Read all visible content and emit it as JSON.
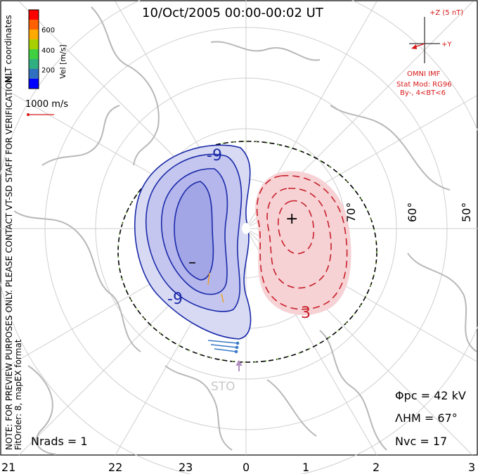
{
  "title": "10/Oct/2005 00:00-00:02 UT",
  "coordinates_label": "MLT coordinates",
  "velocity_scale": {
    "unit_label": "Vel [m/s]",
    "ticks": [
      "600",
      "400",
      "200"
    ],
    "colors": [
      "#ff0000",
      "#ff6000",
      "#ffaa00",
      "#a8d000",
      "#40d040",
      "#30b080",
      "#3070c0",
      "#0000ff"
    ]
  },
  "reference_vector_label": "1000 m/s",
  "side_notes": {
    "line1": "NOTE: FOR PREVIEW PURPOSES ONLY. PLEASE CONTACT VT-SD STAFF FOR VERIFICATION.",
    "line2": "FitOrder: 8, mapEX format"
  },
  "imf": {
    "z_label": "+Z (5 nT)",
    "y_label": "+Y",
    "source": "OMNI IMF",
    "model": "Stat Mod: RG96",
    "condition": "By-, 4<BT<6"
  },
  "latitude_labels": [
    "70°",
    "60°",
    "50°"
  ],
  "station_label": "STO",
  "contour_labels": {
    "negative_top": "-9",
    "negative_bottom": "-9",
    "positive": "3"
  },
  "extrema": {
    "min": "–",
    "max": "+"
  },
  "stats": {
    "phi_pc": "Φpc = 42 kV",
    "lambda_hm": "ΛHM = 67°",
    "n_vc": "Nvc = 17",
    "n_rads": "Nrads = 1"
  },
  "mlt_ticks": [
    "21",
    "22",
    "23",
    "0",
    "1",
    "2",
    "3"
  ],
  "colors": {
    "negative_contour": "#1a2aa8",
    "positive_contour": "#c8202a",
    "negative_fill": "#a8acec",
    "positive_fill": "#f4c8cc",
    "grid": "#c8c8c8",
    "coast": "#b8b8b8",
    "annotation_red": "#d81818"
  }
}
